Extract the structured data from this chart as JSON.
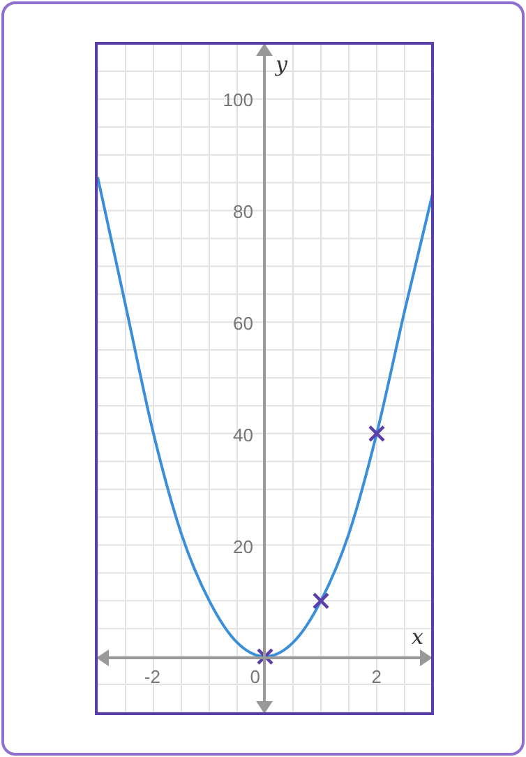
{
  "chart_data": {
    "type": "line",
    "xlabel": "x",
    "ylabel": "y",
    "xlim": [
      -3,
      3
    ],
    "ylim": [
      -10,
      110
    ],
    "xticks": [
      {
        "value": -2.5,
        "label": null
      },
      -2,
      {
        "value": -1.5,
        "label": null
      },
      {
        "value": -1,
        "label": null
      },
      {
        "value": -0.5,
        "label": null
      },
      0,
      {
        "value": 0.5,
        "label": null
      },
      {
        "value": 1,
        "label": null
      },
      {
        "value": 1.5,
        "label": null
      },
      2,
      {
        "value": 2.5,
        "label": null
      }
    ],
    "yticks": [
      {
        "value": -5,
        "label": null
      },
      {
        "value": 0,
        "label": null
      },
      {
        "value": 5,
        "label": null
      },
      {
        "value": 10,
        "label": null
      },
      {
        "value": 15,
        "label": null
      },
      20,
      {
        "value": 25,
        "label": null
      },
      {
        "value": 30,
        "label": null
      },
      {
        "value": 35,
        "label": null
      },
      40,
      {
        "value": 45,
        "label": null
      },
      {
        "value": 50,
        "label": null
      },
      {
        "value": 55,
        "label": null
      },
      60,
      {
        "value": 65,
        "label": null
      },
      {
        "value": 70,
        "label": null
      },
      {
        "value": 75,
        "label": null
      },
      80,
      {
        "value": 85,
        "label": null
      },
      {
        "value": 90,
        "label": null
      },
      {
        "value": 95,
        "label": null
      },
      100,
      {
        "value": 105,
        "label": null
      }
    ],
    "grid": true,
    "series": [
      {
        "color": "#3b8fd9",
        "marker": "none",
        "x": [
          -3,
          -2.5,
          -2,
          -1.5,
          -1,
          -0.5,
          0,
          0.5,
          1,
          1.5,
          2,
          2.5,
          3
        ],
        "values": [
          86,
          63,
          40,
          22,
          10,
          2.5,
          0,
          2.5,
          10,
          22,
          40,
          62,
          83
        ]
      },
      {
        "type": "scatter",
        "color": "#5b3fa8",
        "marker": "cross",
        "x": [
          0,
          1,
          2
        ],
        "values": [
          0,
          10,
          40
        ]
      }
    ]
  }
}
